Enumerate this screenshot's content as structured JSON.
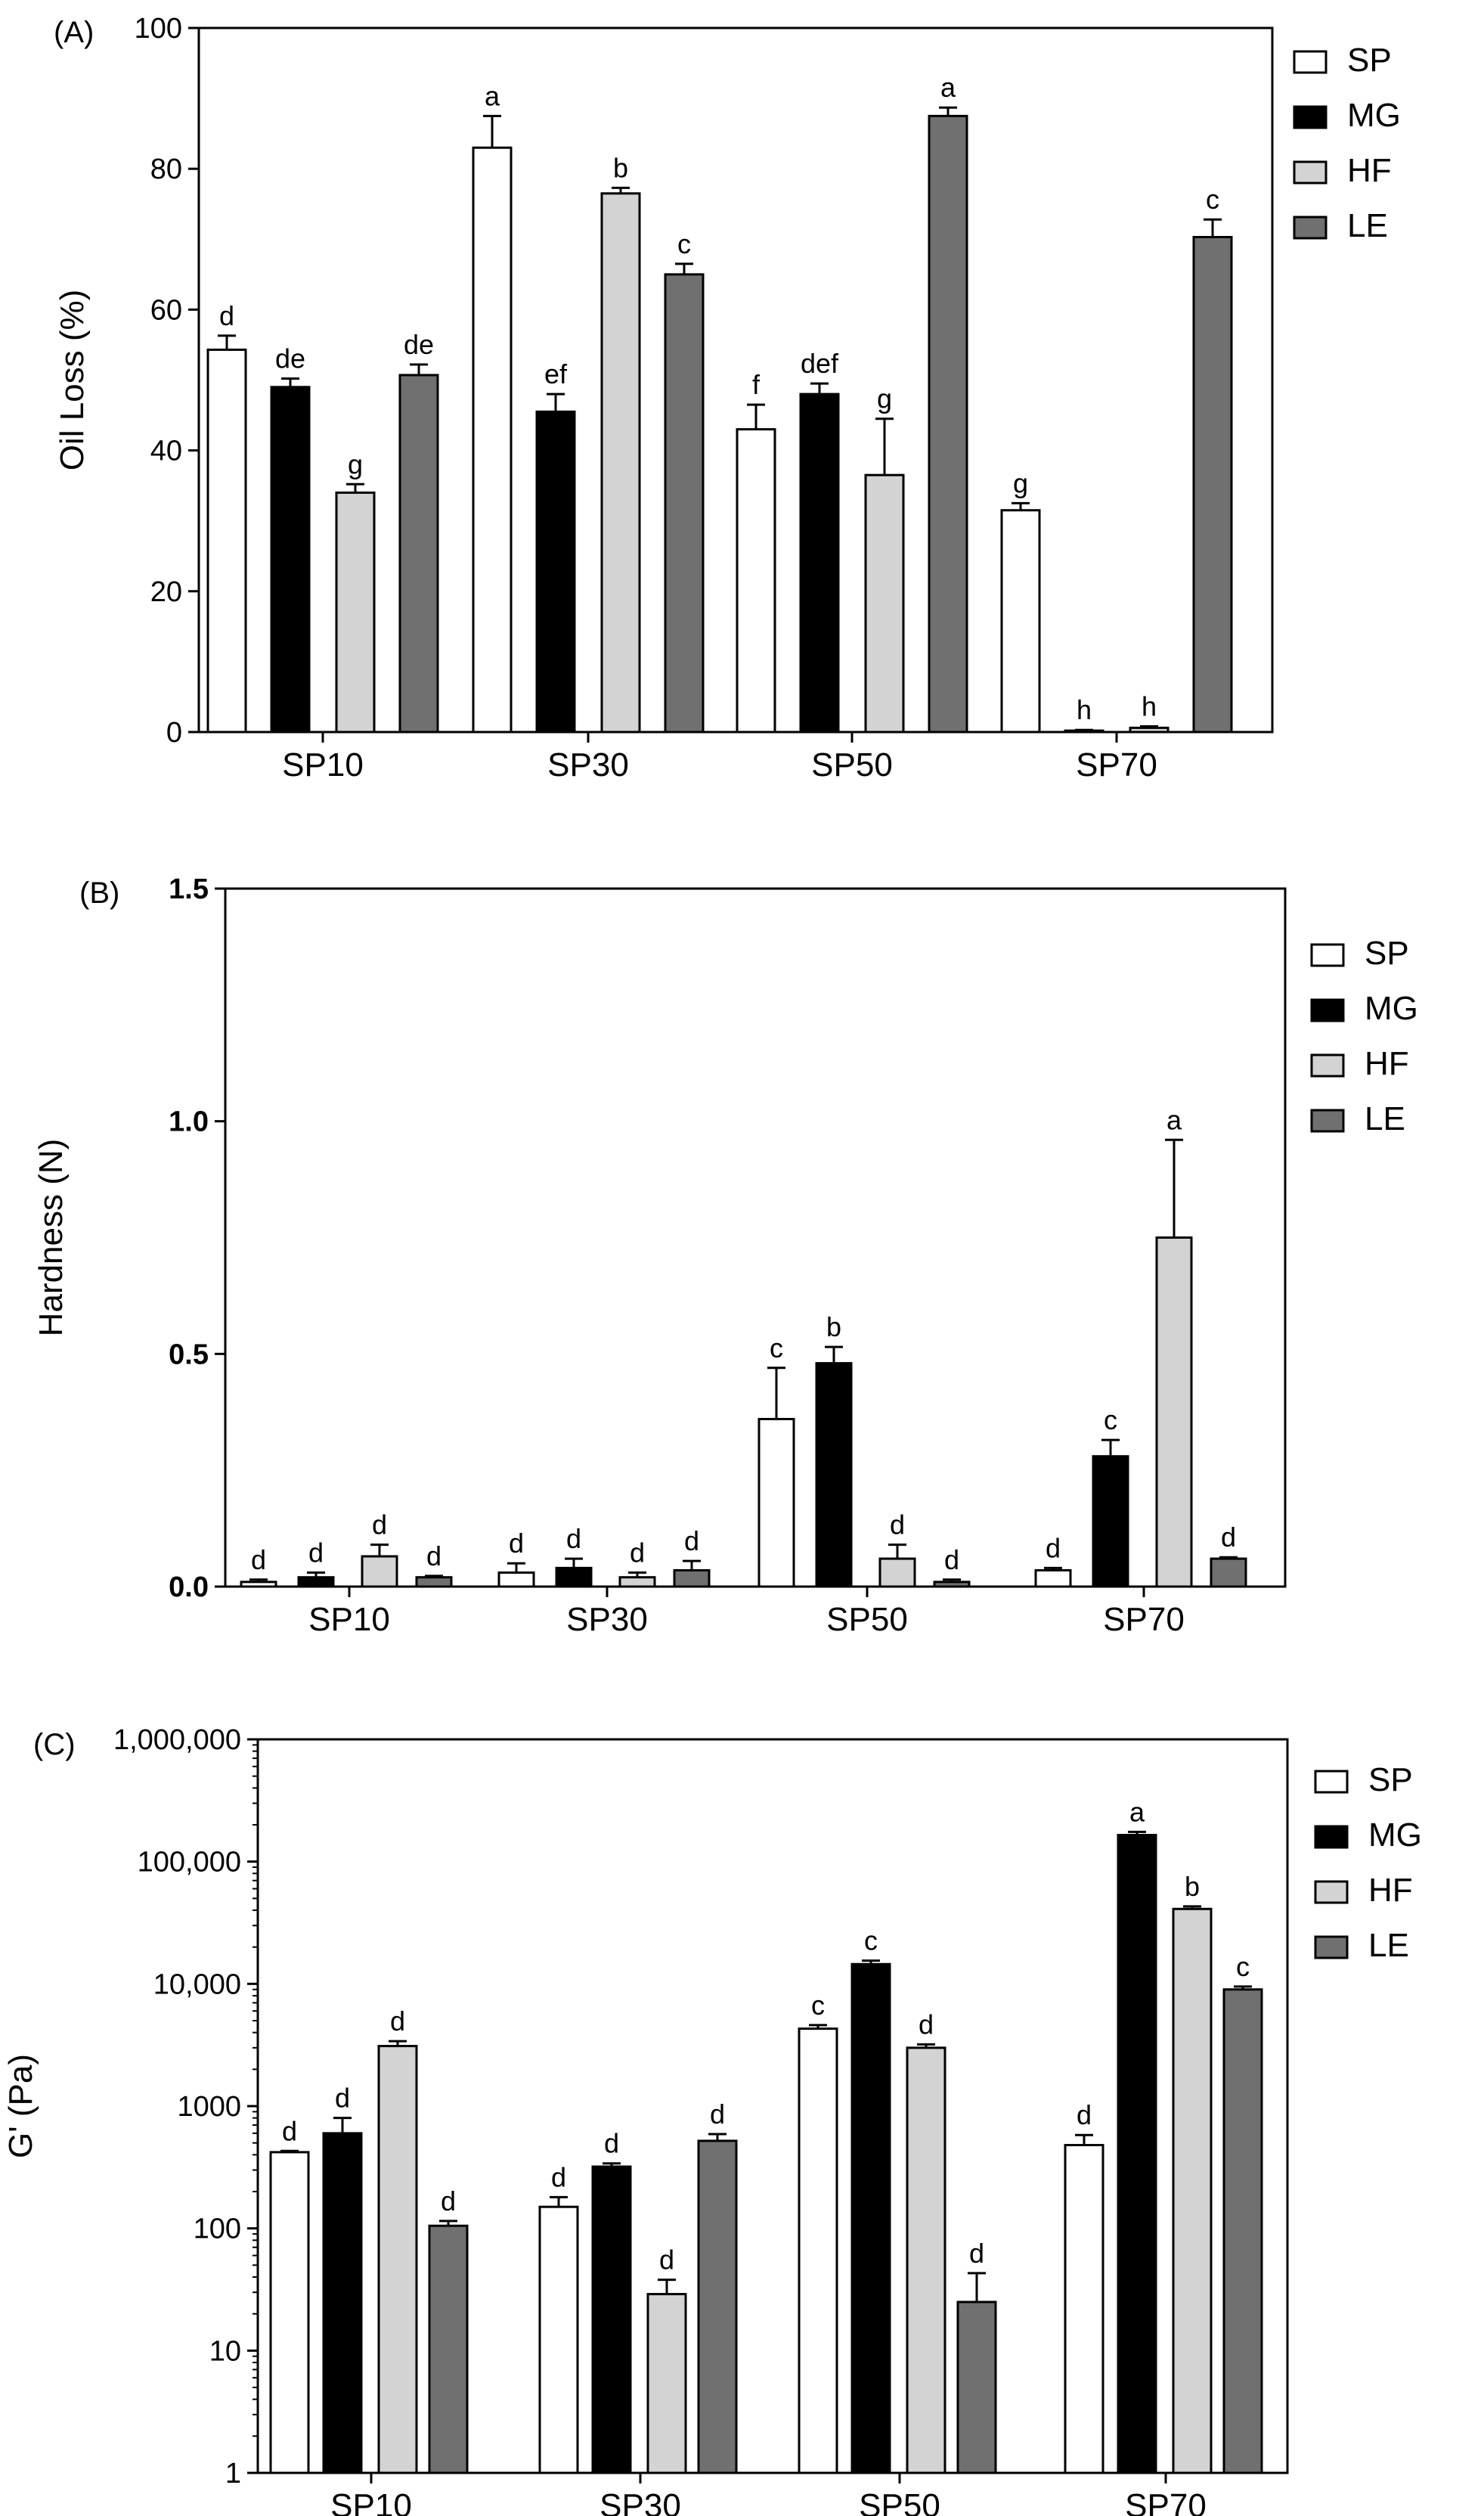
{
  "series_colors": {
    "SP": "#ffffff",
    "MG": "#000000",
    "HF": "#d3d3d3",
    "LE": "#707070"
  },
  "chart_data": [
    {
      "type": "bar",
      "panel_label": "(A)",
      "ylabel": "Oil Loss (%)",
      "scale": "linear",
      "ylim": [
        0,
        100
      ],
      "yticks": [
        0,
        20,
        40,
        60,
        80,
        100
      ],
      "ytick_labels": [
        "0",
        "20",
        "40",
        "60",
        "80",
        "100"
      ],
      "categories": [
        "SP10",
        "SP30",
        "SP50",
        "SP70"
      ],
      "legend": [
        "SP",
        "MG",
        "HF",
        "LE"
      ],
      "series": [
        {
          "name": "SP",
          "values": [
            54.3,
            83,
            43,
            31.5
          ],
          "errors": [
            2,
            4.5,
            3.5,
            1
          ],
          "letters": [
            "d",
            "a",
            "f",
            "g"
          ]
        },
        {
          "name": "MG",
          "values": [
            49,
            45.5,
            48,
            0.2
          ],
          "errors": [
            1.2,
            2.5,
            1.5,
            0.1
          ],
          "letters": [
            "de",
            "ef",
            "def",
            "h"
          ]
        },
        {
          "name": "HF",
          "values": [
            34,
            76.5,
            36.5,
            0.6
          ],
          "errors": [
            1.2,
            0.8,
            8,
            0.2
          ],
          "letters": [
            "g",
            "b",
            "g",
            "h"
          ]
        },
        {
          "name": "LE",
          "values": [
            50.7,
            65,
            87.5,
            70.3
          ],
          "errors": [
            1.5,
            1.5,
            1.2,
            2.5
          ],
          "letters": [
            "de",
            "c",
            "a",
            "c"
          ]
        }
      ]
    },
    {
      "type": "bar",
      "panel_label": "(B)",
      "ylabel": "Hardness (N)",
      "scale": "linear",
      "ylim": [
        0,
        1.5
      ],
      "yticks": [
        0,
        0.5,
        1.0,
        1.5
      ],
      "ytick_labels": [
        "0.0",
        "0.5",
        "1.0",
        "1.5"
      ],
      "categories": [
        "SP10",
        "SP30",
        "SP50",
        "SP70"
      ],
      "legend": [
        "SP",
        "MG",
        "HF",
        "LE"
      ],
      "series": [
        {
          "name": "SP",
          "values": [
            0.01,
            0.03,
            0.36,
            0.035
          ],
          "errors": [
            0.005,
            0.02,
            0.11,
            0.005
          ],
          "letters": [
            "d",
            "d",
            "c",
            "d"
          ]
        },
        {
          "name": "MG",
          "values": [
            0.02,
            0.04,
            0.48,
            0.28
          ],
          "errors": [
            0.01,
            0.02,
            0.035,
            0.035
          ],
          "letters": [
            "d",
            "d",
            "b",
            "c"
          ]
        },
        {
          "name": "HF",
          "values": [
            0.065,
            0.02,
            0.06,
            0.75
          ],
          "errors": [
            0.025,
            0.01,
            0.03,
            0.21
          ],
          "letters": [
            "d",
            "d",
            "d",
            "a"
          ]
        },
        {
          "name": "LE",
          "values": [
            0.02,
            0.035,
            0.01,
            0.06
          ],
          "errors": [
            0.003,
            0.02,
            0.005,
            0.003
          ],
          "letters": [
            "d",
            "d",
            "d",
            "d"
          ]
        }
      ]
    },
    {
      "type": "bar",
      "panel_label": "(C)",
      "ylabel": "G' (Pa)",
      "scale": "log",
      "ylim": [
        1,
        1000000
      ],
      "yticks": [
        1,
        10,
        100,
        1000,
        10000,
        100000,
        1000000
      ],
      "ytick_labels": [
        "1",
        "10",
        "100",
        "1000",
        "10,000",
        "100,000",
        "1,000,000"
      ],
      "categories": [
        "SP10",
        "SP30",
        "SP50",
        "SP70"
      ],
      "legend": [
        "SP",
        "MG",
        "HF",
        "LE"
      ],
      "series": [
        {
          "name": "SP",
          "values": [
            420,
            150,
            4300,
            480
          ],
          "errors": [
            10,
            30,
            300,
            100
          ],
          "letters": [
            "d",
            "d",
            "c",
            "d"
          ]
        },
        {
          "name": "MG",
          "values": [
            600,
            320,
            14500,
            165000
          ],
          "errors": [
            200,
            20,
            1000,
            10000
          ],
          "letters": [
            "d",
            "d",
            "c",
            "a"
          ]
        },
        {
          "name": "HF",
          "values": [
            3100,
            29,
            3000,
            41000
          ],
          "errors": [
            300,
            9,
            200,
            2000
          ],
          "letters": [
            "d",
            "d",
            "d",
            "b"
          ]
        },
        {
          "name": "LE",
          "values": [
            105,
            520,
            25,
            9000
          ],
          "errors": [
            10,
            70,
            18,
            500
          ],
          "letters": [
            "d",
            "d",
            "d",
            "c"
          ]
        }
      ]
    }
  ]
}
